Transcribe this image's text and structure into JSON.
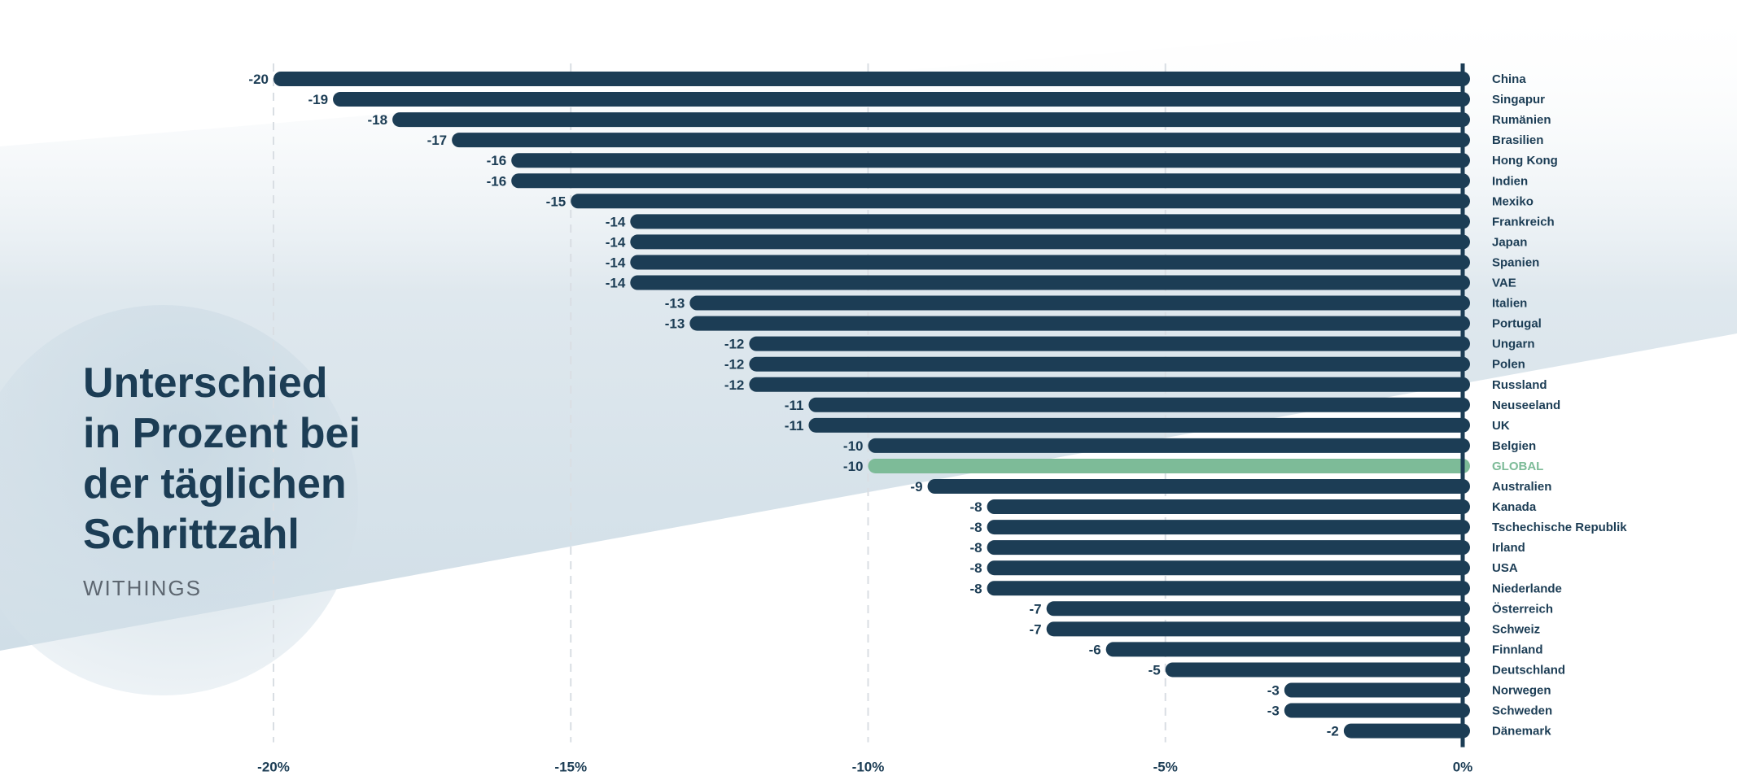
{
  "title": "Unterschied\nin Prozent bei\nder täglichen\nSchrittzahl",
  "brand": "WITHINGS",
  "colors": {
    "bar": "#1c3d55",
    "highlight": "#7dbb98",
    "text": "#1c3d55",
    "axis": "#1c3d55",
    "grid": "#d9dee3",
    "background_shape": "#d3e0e8"
  },
  "chart_data": {
    "type": "bar",
    "orientation": "horizontal",
    "categories": [
      "China",
      "Singapur",
      "Rumänien",
      "Brasilien",
      "Hong Kong",
      "Indien",
      "Mexiko",
      "Frankreich",
      "Japan",
      "Spanien",
      "VAE",
      "Italien",
      "Portugal",
      "Ungarn",
      "Polen",
      "Russland",
      "Neuseeland",
      "UK",
      "Belgien",
      "GLOBAL",
      "Australien",
      "Kanada",
      "Tschechische Republik",
      "Irland",
      "USA",
      "Niederlande",
      "Österreich",
      "Schweiz",
      "Finnland",
      "Deutschland",
      "Norwegen",
      "Schweden",
      "Dänemark"
    ],
    "values": [
      -20,
      -19,
      -18,
      -17,
      -16,
      -16,
      -15,
      -14,
      -14,
      -14,
      -14,
      -13,
      -13,
      -12,
      -12,
      -12,
      -11,
      -11,
      -10,
      -10,
      -9,
      -8,
      -8,
      -8,
      -8,
      -8,
      -7,
      -7,
      -6,
      -5,
      -3,
      -3,
      -2
    ],
    "value_labels": [
      "-20",
      "-19",
      "-18",
      "-17",
      "-16",
      "-16",
      "-15",
      "-14",
      "-14",
      "-14",
      "-14",
      "-13",
      "-13",
      "-12",
      "-12",
      "-12",
      "-11",
      "-11",
      "-10",
      "-10",
      "-9",
      "-8",
      "-8",
      "-8",
      "-8",
      "-8",
      "-7",
      "-7",
      "-6",
      "-5",
      "-3",
      "-3",
      "-2"
    ],
    "highlight_category": "GLOBAL",
    "xlim": [
      -20,
      0
    ],
    "xticks": [
      -20,
      -15,
      -10,
      -5,
      0
    ],
    "xtick_labels": [
      "-20%",
      "-15%",
      "-10%",
      "-5%",
      "0%"
    ],
    "grid": true,
    "xlabel": "",
    "ylabel": ""
  }
}
